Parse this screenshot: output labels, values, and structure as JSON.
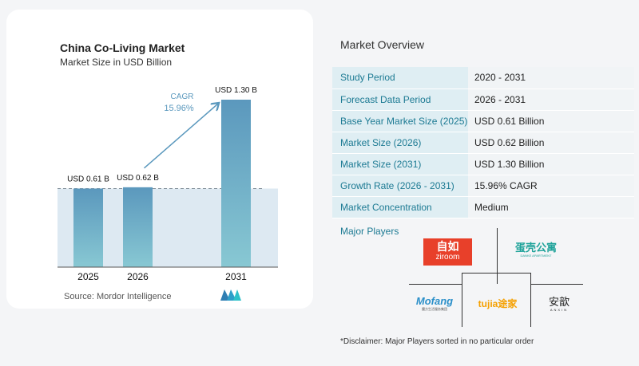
{
  "title": "China Co-Living Market",
  "subtitle": "Market Size in USD Billion",
  "source": "Source:  Mordor Intelligence",
  "cagr_label": "CAGR",
  "cagr_value": "15.96%",
  "chart_data": {
    "type": "bar",
    "categories": [
      "2025",
      "2026",
      "2031"
    ],
    "values": [
      0.61,
      0.62,
      1.3
    ],
    "data_labels": [
      "USD 0.61 B",
      "USD 0.62 B",
      "USD 1.30 B"
    ],
    "title": "China Co-Living Market",
    "subtitle": "Market Size in USD Billion",
    "xlabel": "",
    "ylabel": "",
    "ylim": [
      0,
      1.35
    ],
    "grid": false,
    "colors": {
      "bar_top": "#5b98bd",
      "bar_bottom": "#88c8d3",
      "shade": "#dde9f2",
      "arrow": "#5a98bd",
      "cagr": "#5a98bd"
    }
  },
  "overview": {
    "title": "Market Overview",
    "rows": [
      {
        "key": "Study Period",
        "value": "2020 - 2031"
      },
      {
        "key": "Forecast Data Period",
        "value": "2026 - 2031"
      },
      {
        "key": "Base Year Market Size (2025)",
        "value": "USD 0.61 Billion"
      },
      {
        "key": "Market Size (2026)",
        "value": "USD 0.62 Billion"
      },
      {
        "key": "Market Size (2031)",
        "value": "USD 1.30 Billion"
      },
      {
        "key": "Growth Rate (2026 - 2031)",
        "value": "15.96% CAGR"
      },
      {
        "key": "Market Concentration",
        "value": "Medium"
      }
    ]
  },
  "major_players": {
    "label": "Major Players",
    "logos": [
      {
        "name": "Ziroom",
        "text_top": "自如",
        "text_bottom": "ziroom",
        "color": "#e8402a"
      },
      {
        "name": "Danke Apartment",
        "text_top": "蛋壳公寓",
        "text_bottom": "DANKE APARTMENT",
        "color": "#1fa39a"
      },
      {
        "name": "Mofang",
        "text_top": "Mofang",
        "text_bottom": "魔方生活服务集团",
        "color": "#2a8fc9"
      },
      {
        "name": "Tujia",
        "text_top": "tujia途家",
        "color": "#f5a000"
      },
      {
        "name": "Anxin",
        "text_top": "安歆",
        "text_bottom": "ANXIN",
        "color": "#222222"
      }
    ]
  },
  "disclaimer": "*Disclaimer: Major Players sorted in no particular order"
}
